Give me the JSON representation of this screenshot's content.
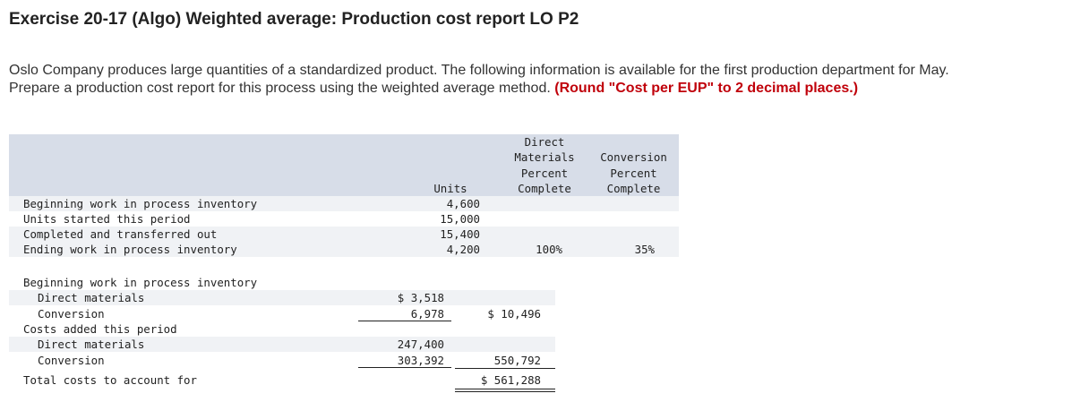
{
  "title": "Exercise 20-17 (Algo) Weighted average: Production cost report LO P2",
  "prompt": {
    "text": "Oslo Company produces large quantities of a standardized product. The following information is available for the first production department for May. Prepare a production cost report for this process using the weighted average method. ",
    "highlight": "(Round \"Cost per EUP\" to 2 decimal places.)"
  },
  "units_table": {
    "headers": {
      "units": "Units",
      "dm_line1": "Direct",
      "dm_line2": "Materials",
      "dm_line3": "Percent",
      "dm_line4": "Complete",
      "conv_line1": "Conversion",
      "conv_line2": "Percent",
      "conv_line3": "Complete"
    },
    "rows": [
      {
        "label": "Beginning work in process inventory",
        "units": "4,600",
        "dm": "",
        "conv": ""
      },
      {
        "label": "Units started this period",
        "units": "15,000",
        "dm": "",
        "conv": ""
      },
      {
        "label": "Completed and transferred out",
        "units": "15,400",
        "dm": "",
        "conv": ""
      },
      {
        "label": "Ending work in process inventory",
        "units": "4,200",
        "dm": "100%",
        "conv": "35%"
      }
    ]
  },
  "cost_table": {
    "beg_label": "Beginning work in process inventory",
    "beg_dm_label": "Direct materials",
    "beg_dm": "$ 3,518",
    "beg_conv_label": "Conversion",
    "beg_conv": "6,978",
    "beg_total": "$ 10,496",
    "added_label": "Costs added this period",
    "added_dm_label": "Direct materials",
    "added_dm": "247,400",
    "added_conv_label": "Conversion",
    "added_conv": "303,392",
    "added_total": "550,792",
    "total_label": "Total costs to account for",
    "total": "$ 561,288"
  }
}
